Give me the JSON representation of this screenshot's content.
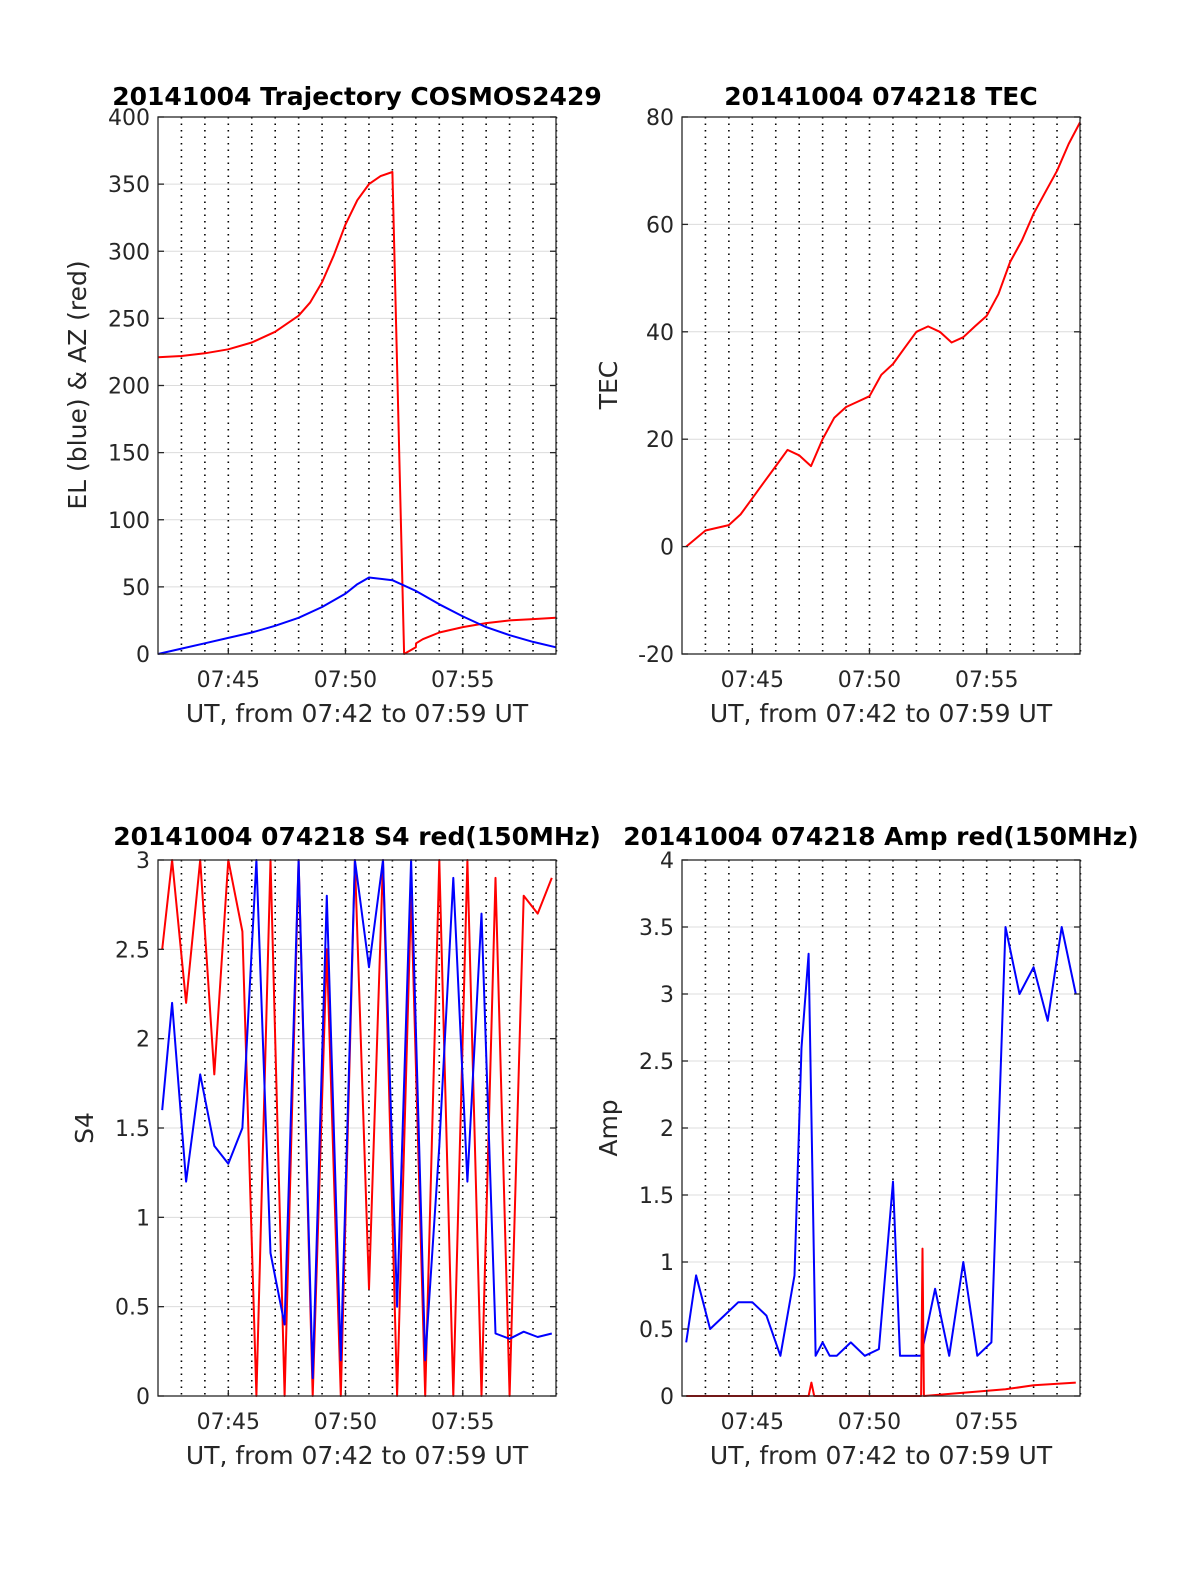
{
  "chart_data": [
    {
      "type": "line",
      "title": "20141004 Trajectory COSMOS2429",
      "xlabel": "UT, from 07:42 to 07:59 UT",
      "ylabel": "EL (blue) & AZ (red)",
      "xlim": [
        7.7,
        7.983
      ],
      "ylim": [
        0,
        400
      ],
      "yticks": [
        0,
        50,
        100,
        150,
        200,
        250,
        300,
        350,
        400
      ],
      "ytick_labels": [
        "0",
        "50",
        "100",
        "150",
        "200",
        "250",
        "300",
        "350",
        "400"
      ],
      "xticks": [
        7.75,
        7.8333,
        7.9167
      ],
      "xtick_labels": [
        "07:45",
        "07:50",
        "07:55"
      ],
      "grid": true,
      "series": [
        {
          "color": "#ff0000",
          "x": [
            7.7,
            7.7167,
            7.7333,
            7.75,
            7.7667,
            7.7833,
            7.8,
            7.8083,
            7.8167,
            7.825,
            7.8333,
            7.8417,
            7.85,
            7.8583,
            7.8667,
            7.875,
            7.8833,
            7.8835,
            7.8883,
            7.9,
            7.9167,
            7.9333,
            7.95,
            7.9667,
            7.983
          ],
          "values": [
            221,
            222,
            224,
            227,
            232,
            240,
            252,
            262,
            277,
            297,
            320,
            338,
            350,
            356,
            359,
            0,
            5,
            8,
            11,
            16,
            20,
            23,
            25,
            26,
            27
          ]
        },
        {
          "color": "#0000ff",
          "x": [
            7.7,
            7.7167,
            7.7333,
            7.75,
            7.7667,
            7.7833,
            7.8,
            7.8167,
            7.8333,
            7.8417,
            7.85,
            7.8667,
            7.8833,
            7.9,
            7.9167,
            7.9333,
            7.95,
            7.9667,
            7.983
          ],
          "values": [
            0,
            4,
            8,
            12,
            16,
            21,
            27,
            35,
            45,
            52,
            57,
            55,
            47,
            37,
            28,
            20,
            14,
            9,
            5
          ]
        }
      ]
    },
    {
      "type": "line",
      "title": "20141004 074218 TEC",
      "xlabel": "UT, from 07:42 to 07:59 UT",
      "ylabel": "TEC",
      "xlim": [
        7.7,
        7.983
      ],
      "ylim": [
        -20,
        80
      ],
      "yticks": [
        -20,
        0,
        20,
        40,
        60,
        80
      ],
      "ytick_labels": [
        "-20",
        "0",
        "20",
        "40",
        "60",
        "80"
      ],
      "xticks": [
        7.75,
        7.8333,
        7.9167
      ],
      "xtick_labels": [
        "07:45",
        "07:50",
        "07:55"
      ],
      "grid": true,
      "series": [
        {
          "color": "#ff0000",
          "x": [
            7.703,
            7.7167,
            7.7333,
            7.7417,
            7.75,
            7.7583,
            7.7667,
            7.775,
            7.7833,
            7.7917,
            7.8,
            7.8083,
            7.8167,
            7.825,
            7.8333,
            7.8417,
            7.85,
            7.8583,
            7.8667,
            7.875,
            7.8833,
            7.8917,
            7.9,
            7.9083,
            7.9167,
            7.925,
            7.9333,
            7.9417,
            7.95,
            7.9583,
            7.9667,
            7.975,
            7.983
          ],
          "values": [
            0,
            3,
            4,
            6,
            9,
            12,
            15,
            18,
            17,
            15,
            20,
            24,
            26,
            27,
            28,
            32,
            34,
            37,
            40,
            41,
            40,
            38,
            39,
            41,
            43,
            47,
            53,
            57,
            62,
            66,
            70,
            75,
            79
          ]
        }
      ]
    },
    {
      "type": "line",
      "title": "20141004 074218 S4 red(150MHz)",
      "xlabel": "UT, from 07:42 to 07:59 UT",
      "ylabel": "S4",
      "xlim": [
        7.7,
        7.983
      ],
      "ylim": [
        0,
        3
      ],
      "yticks": [
        0,
        0.5,
        1,
        1.5,
        2,
        2.5,
        3
      ],
      "ytick_labels": [
        "0",
        "0.5",
        "1",
        "1.5",
        "2",
        "2.5",
        "3"
      ],
      "xticks": [
        7.75,
        7.8333,
        7.9167
      ],
      "xtick_labels": [
        "07:45",
        "07:50",
        "07:55"
      ],
      "grid": true,
      "series": [
        {
          "color": "#ff0000",
          "x": [
            7.703,
            7.71,
            7.72,
            7.73,
            7.74,
            7.75,
            7.76,
            7.77,
            7.78,
            7.79,
            7.8,
            7.81,
            7.82,
            7.83,
            7.84,
            7.85,
            7.86,
            7.87,
            7.88,
            7.89,
            7.9,
            7.91,
            7.92,
            7.93,
            7.94,
            7.95,
            7.96,
            7.97,
            7.98
          ],
          "values": [
            2.5,
            3.0,
            2.2,
            3.0,
            1.8,
            3.0,
            2.6,
            0.0,
            3.0,
            0.0,
            3.0,
            0.0,
            2.5,
            0.0,
            3.0,
            0.6,
            3.0,
            0.0,
            2.8,
            0.0,
            3.0,
            0.0,
            3.0,
            0.0,
            2.9,
            0.0,
            2.8,
            2.7,
            2.9
          ]
        },
        {
          "color": "#0000ff",
          "x": [
            7.703,
            7.71,
            7.72,
            7.73,
            7.74,
            7.75,
            7.76,
            7.77,
            7.78,
            7.79,
            7.8,
            7.81,
            7.82,
            7.83,
            7.84,
            7.85,
            7.86,
            7.87,
            7.88,
            7.89,
            7.9,
            7.91,
            7.92,
            7.93,
            7.94,
            7.95,
            7.96,
            7.97,
            7.98
          ],
          "values": [
            1.6,
            2.2,
            1.2,
            1.8,
            1.4,
            1.3,
            1.5,
            3.0,
            0.8,
            0.4,
            3.0,
            0.1,
            2.8,
            0.2,
            3.0,
            2.4,
            3.0,
            0.5,
            3.0,
            0.2,
            1.4,
            2.9,
            1.2,
            2.7,
            0.35,
            0.32,
            0.36,
            0.33,
            0.35
          ]
        }
      ]
    },
    {
      "type": "line",
      "title": "20141004 074218 Amp red(150MHz)",
      "xlabel": "UT, from 07:42 to 07:59 UT",
      "ylabel": "Amp",
      "xlim": [
        7.7,
        7.983
      ],
      "ylim": [
        0,
        4
      ],
      "yticks": [
        0,
        0.5,
        1,
        1.5,
        2,
        2.5,
        3,
        3.5,
        4
      ],
      "ytick_labels": [
        "0",
        "0.5",
        "1",
        "1.5",
        "2",
        "2.5",
        "3",
        "3.5",
        "4"
      ],
      "xticks": [
        7.75,
        7.8333,
        7.9167
      ],
      "xtick_labels": [
        "07:45",
        "07:50",
        "07:55"
      ],
      "grid": true,
      "series": [
        {
          "color": "#0000ff",
          "x": [
            7.703,
            7.71,
            7.72,
            7.73,
            7.74,
            7.75,
            7.76,
            7.77,
            7.78,
            7.785,
            7.79,
            7.795,
            7.8,
            7.805,
            7.81,
            7.82,
            7.83,
            7.84,
            7.85,
            7.855,
            7.86,
            7.87,
            7.88,
            7.89,
            7.9,
            7.91,
            7.92,
            7.93,
            7.94,
            7.95,
            7.96,
            7.97,
            7.98
          ],
          "values": [
            0.4,
            0.9,
            0.5,
            0.6,
            0.7,
            0.7,
            0.6,
            0.3,
            0.9,
            2.6,
            3.3,
            0.3,
            0.4,
            0.3,
            0.3,
            0.4,
            0.3,
            0.35,
            1.6,
            0.3,
            0.3,
            0.3,
            0.8,
            0.3,
            1.0,
            0.3,
            0.4,
            3.5,
            3.0,
            3.2,
            2.8,
            3.5,
            3.0
          ]
        },
        {
          "color": "#ff0000",
          "x": [
            7.703,
            7.79,
            7.792,
            7.794,
            7.87,
            7.871,
            7.872,
            7.93,
            7.95,
            7.98
          ],
          "values": [
            0.0,
            0.0,
            0.1,
            0.0,
            0.0,
            1.1,
            0.0,
            0.05,
            0.08,
            0.1
          ]
        }
      ]
    }
  ]
}
